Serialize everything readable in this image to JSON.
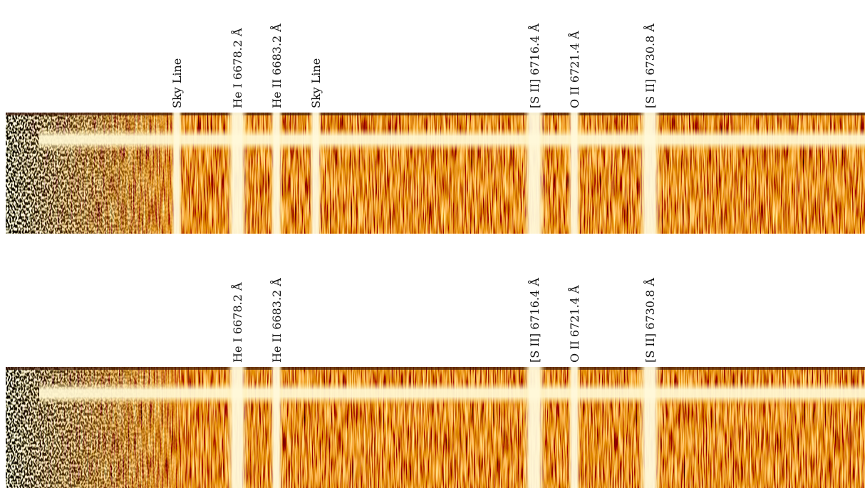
{
  "panels": [
    {
      "labels": [
        "Sky Line",
        "He I 6678.2 Å",
        "He II 6683.2 Å",
        "Sky Line",
        "[S II] 6716.4 Å",
        "O II 6721.4 Å",
        "[S II] 6730.8 Å"
      ]
    },
    {
      "labels": [
        "He I 6678.2 Å",
        "He II 6683.2 Å",
        "[S II] 6716.4 Å",
        "O II 6721.4 Å",
        "[S II] 6730.8 Å"
      ]
    }
  ]
}
